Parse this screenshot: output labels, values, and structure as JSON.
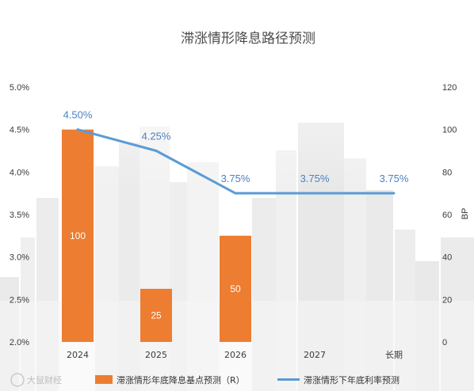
{
  "chart_data": {
    "type": "bar+line",
    "title": "滞涨情形降息路径预测",
    "categories": [
      "2024",
      "2025",
      "2026",
      "2027",
      "长期"
    ],
    "left_axis": {
      "ticks": [
        "5.0%",
        "4.5%",
        "4.0%",
        "3.5%",
        "3.0%",
        "2.5%",
        "2.0%"
      ],
      "min": 2.0,
      "max": 5.0
    },
    "right_axis": {
      "title": "BP",
      "ticks": [
        "120",
        "100",
        "80",
        "60",
        "40",
        "20",
        "0"
      ],
      "min": 0,
      "max": 120
    },
    "series": [
      {
        "name": "滞涨情形年底降息基点预测（R）",
        "type": "bar",
        "axis": "right",
        "color": "#ed7d31",
        "values": [
          100,
          25,
          50,
          null,
          null
        ],
        "labels": [
          "100",
          "25",
          "50",
          "",
          ""
        ]
      },
      {
        "name": "滞涨情形下年底利率预测",
        "type": "line",
        "axis": "left",
        "color": "#5b9bd5",
        "values": [
          4.5,
          4.25,
          3.75,
          3.75,
          3.75
        ],
        "labels": [
          "4.50%",
          "4.25%",
          "3.75%",
          "3.75%",
          "3.75%"
        ]
      }
    ],
    "legend": {
      "position": "bottom"
    },
    "grid": false
  },
  "watermark": {
    "text": "大鼠财经"
  }
}
